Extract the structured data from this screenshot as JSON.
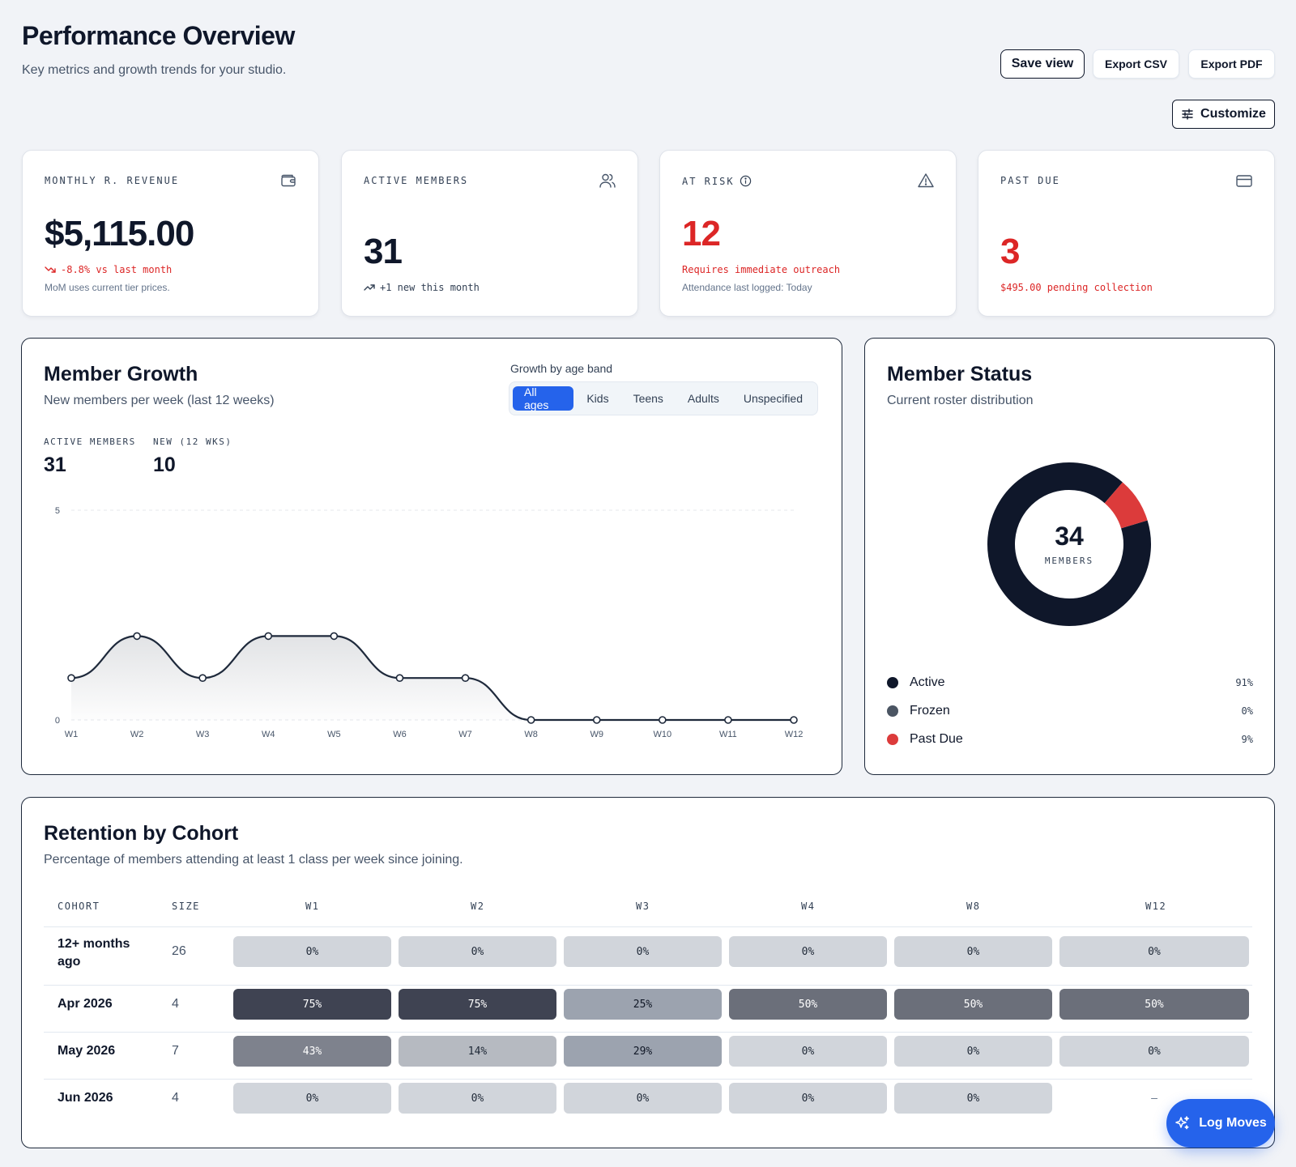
{
  "header": {
    "title": "Performance Overview",
    "subtitle": "Key metrics and growth trends for your studio.",
    "save_view": "Save view",
    "export_csv": "Export CSV",
    "export_pdf": "Export PDF",
    "customize": "Customize"
  },
  "kpis": {
    "mrr": {
      "label": "MONTHLY R. REVENUE",
      "value": "$5,115.00",
      "delta": "-8.8% vs last month",
      "note": "MoM uses current tier prices.",
      "icon": "wallet-icon"
    },
    "active": {
      "label": "ACTIVE MEMBERS",
      "value": "31",
      "delta": "+1 new this month",
      "icon": "users-icon"
    },
    "at_risk": {
      "label": "AT RISK",
      "value": "12",
      "alert": "Requires immediate outreach",
      "note": "Attendance last logged: Today",
      "icon": "alert-triangle-icon"
    },
    "past_due": {
      "label": "PAST DUE",
      "value": "3",
      "alert": "$495.00 pending collection",
      "icon": "credit-card-icon"
    }
  },
  "growth": {
    "title": "Member Growth",
    "subtitle": "New members per week (last 12 weeks)",
    "band_label": "Growth by age band",
    "bands": [
      "All ages",
      "Kids",
      "Teens",
      "Adults",
      "Unspecified"
    ],
    "selected_band": "All ages",
    "stats": [
      {
        "label": "ACTIVE MEMBERS",
        "value": "31"
      },
      {
        "label": "NEW (12 WKS)",
        "value": "10"
      }
    ]
  },
  "chart_data": {
    "type": "area",
    "categories": [
      "W1",
      "W2",
      "W3",
      "W4",
      "W5",
      "W6",
      "W7",
      "W8",
      "W9",
      "W10",
      "W11",
      "W12"
    ],
    "values": [
      1,
      2,
      1,
      2,
      2,
      1,
      1,
      0,
      0,
      0,
      0,
      0
    ],
    "ylim": [
      0,
      5
    ],
    "yticks": [
      "0",
      "5"
    ],
    "grid": true,
    "color": "#1e293b"
  },
  "status": {
    "title": "Member Status",
    "subtitle": "Current roster distribution",
    "total": "34",
    "total_label": "MEMBERS",
    "segments": [
      {
        "name": "Active",
        "pct": "91%",
        "share": 0.91,
        "color": "#0f172a"
      },
      {
        "name": "Frozen",
        "pct": "0%",
        "share": 0,
        "color": "#4b5563"
      },
      {
        "name": "Past Due",
        "pct": "9%",
        "share": 0.09,
        "color": "#dc3b3b"
      }
    ]
  },
  "retention": {
    "title": "Retention by Cohort",
    "subtitle": "Percentage of members attending at least 1 class per week since joining.",
    "columns": [
      "COHORT",
      "SIZE",
      "W1",
      "W2",
      "W3",
      "W4",
      "W8",
      "W12"
    ],
    "rows": [
      {
        "cohort": "12+ months ago",
        "size": "26",
        "cells": [
          "0%",
          "0%",
          "0%",
          "0%",
          "0%",
          "0%"
        ]
      },
      {
        "cohort": "Apr 2026",
        "size": "4",
        "cells": [
          "75%",
          "75%",
          "25%",
          "50%",
          "50%",
          "50%"
        ]
      },
      {
        "cohort": "May 2026",
        "size": "7",
        "cells": [
          "43%",
          "14%",
          "29%",
          "0%",
          "0%",
          "0%"
        ]
      },
      {
        "cohort": "Jun 2026",
        "size": "4",
        "cells": [
          "0%",
          "0%",
          "0%",
          "0%",
          "0%",
          "–"
        ]
      }
    ]
  },
  "fab": {
    "label": "Log Moves",
    "icon": "sparkles-icon"
  }
}
